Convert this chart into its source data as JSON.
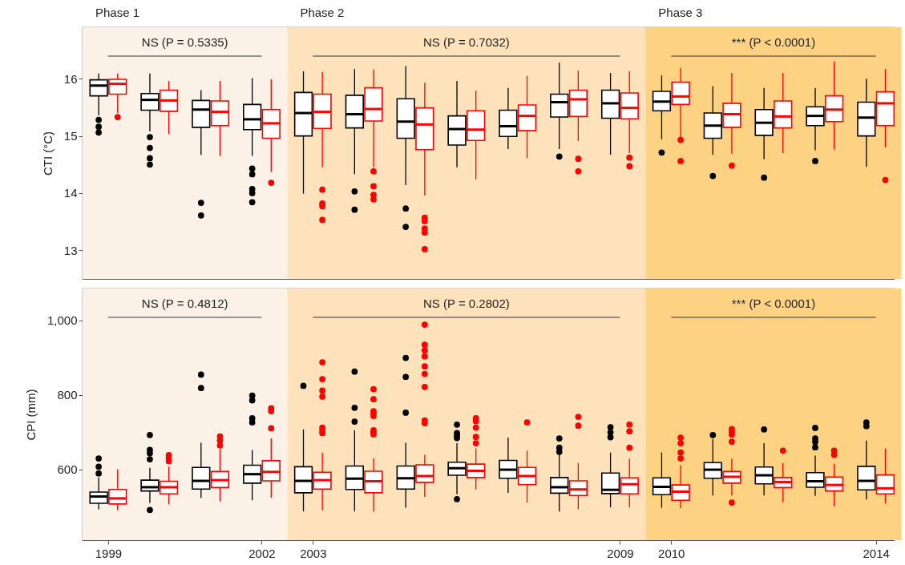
{
  "chart_data": [
    {
      "type": "box",
      "ylabel": "CTI (°C)",
      "categories": [
        "1999",
        null,
        null,
        "2002",
        "2003",
        null,
        null,
        null,
        null,
        null,
        "2009",
        "2010",
        null,
        null,
        null,
        "2014"
      ],
      "ylim": [
        12.5,
        16.9
      ],
      "yticks": [
        13,
        14,
        15,
        16
      ],
      "tick_labels": "y",
      "bands": [
        {
          "axis": "x",
          "from": "1999",
          "to": "2002",
          "label": "Phase 1",
          "color": "#fbf1e6"
        },
        {
          "axis": "x",
          "from": "2003",
          "to": "2009",
          "label": "Phase 2",
          "color": "#fde2bb"
        },
        {
          "axis": "x",
          "from": "2010",
          "to": "2014",
          "label": "Phase 3",
          "color": "#fdd283"
        }
      ],
      "annotations": [
        "NS (P = 0.5335)",
        "NS (P = 0.7032)",
        "*** (P < 0.0001)"
      ],
      "series": [
        {
          "color": "#000000",
          "boxes": [
            {
              "low": 15.36,
              "q1": 15.7,
              "median": 15.88,
              "q3": 15.98,
              "high": 16.09,
              "outliers": [
                15.28,
                15.16,
                15.06
              ]
            },
            {
              "low": 15.08,
              "q1": 15.45,
              "median": 15.63,
              "q3": 15.74,
              "high": 16.09,
              "outliers": [
                14.98,
                14.79,
                14.61,
                14.5
              ]
            },
            {
              "low": 14.67,
              "q1": 15.15,
              "median": 15.46,
              "q3": 15.62,
              "high": 15.8,
              "outliers": [
                13.83,
                13.61
              ]
            },
            {
              "low": 14.65,
              "q1": 15.11,
              "median": 15.29,
              "q3": 15.55,
              "high": 16.01,
              "outliers": [
                14.43,
                14.33,
                14.07,
                14.0,
                13.84
              ]
            },
            {
              "low": 13.99,
              "q1": 15.0,
              "median": 15.4,
              "q3": 15.76,
              "high": 16.13
            },
            {
              "low": 14.33,
              "q1": 15.14,
              "median": 15.38,
              "q3": 15.71,
              "high": 16.17,
              "outliers": [
                14.03,
                13.71
              ]
            },
            {
              "low": 14.14,
              "q1": 14.96,
              "median": 15.25,
              "q3": 15.65,
              "high": 16.22,
              "outliers": [
                13.73,
                13.41
              ]
            },
            {
              "low": 14.45,
              "q1": 14.84,
              "median": 15.12,
              "q3": 15.35,
              "high": 15.96
            },
            {
              "low": 14.77,
              "q1": 14.99,
              "median": 15.17,
              "q3": 15.45,
              "high": 15.84
            },
            {
              "low": 14.77,
              "q1": 15.33,
              "median": 15.59,
              "q3": 15.73,
              "high": 16.28,
              "outliers": [
                14.64
              ]
            },
            {
              "low": 14.67,
              "q1": 15.31,
              "median": 15.57,
              "q3": 15.8,
              "high": 16.1
            },
            {
              "low": 14.94,
              "q1": 15.44,
              "median": 15.6,
              "q3": 15.78,
              "high": 16.06,
              "outliers": [
                14.71
              ]
            },
            {
              "low": 14.67,
              "q1": 14.96,
              "median": 15.18,
              "q3": 15.4,
              "high": 15.87,
              "outliers": [
                14.3
              ]
            },
            {
              "low": 14.59,
              "q1": 15.01,
              "median": 15.23,
              "q3": 15.46,
              "high": 15.84,
              "outliers": [
                14.27
              ]
            },
            {
              "low": 14.75,
              "q1": 15.18,
              "median": 15.35,
              "q3": 15.51,
              "high": 15.84,
              "outliers": [
                14.56
              ]
            },
            {
              "low": 14.46,
              "q1": 15.0,
              "median": 15.32,
              "q3": 15.59,
              "high": 16.0
            }
          ]
        },
        {
          "color": "#ff0000",
          "boxes": [
            {
              "low": 15.4,
              "q1": 15.73,
              "median": 15.91,
              "q3": 15.99,
              "high": 16.09,
              "outliers": [
                15.33
              ]
            },
            {
              "low": 15.03,
              "q1": 15.43,
              "median": 15.62,
              "q3": 15.8,
              "high": 15.96
            },
            {
              "low": 14.65,
              "q1": 15.18,
              "median": 15.42,
              "q3": 15.61,
              "high": 15.96
            },
            {
              "low": 14.37,
              "q1": 14.96,
              "median": 15.22,
              "q3": 15.46,
              "high": 15.99,
              "outliers": [
                14.18
              ]
            },
            {
              "low": 14.45,
              "q1": 15.13,
              "median": 15.42,
              "q3": 15.73,
              "high": 16.12,
              "outliers": [
                14.06,
                13.82,
                13.77,
                13.53
              ]
            },
            {
              "low": 14.45,
              "q1": 15.26,
              "median": 15.47,
              "q3": 15.84,
              "high": 16.16,
              "outliers": [
                14.38,
                14.12,
                13.97,
                13.89
              ]
            },
            {
              "low": 13.96,
              "q1": 14.76,
              "median": 15.2,
              "q3": 15.49,
              "high": 15.93,
              "outliers": [
                13.57,
                13.51,
                13.38,
                13.31,
                13.02
              ]
            },
            {
              "low": 14.24,
              "q1": 14.92,
              "median": 15.11,
              "q3": 15.44,
              "high": 15.79
            },
            {
              "low": 14.61,
              "q1": 15.09,
              "median": 15.35,
              "q3": 15.54,
              "high": 16.05
            },
            {
              "low": 14.91,
              "q1": 15.34,
              "median": 15.64,
              "q3": 15.8,
              "high": 16.14,
              "outliers": [
                14.6,
                14.38
              ]
            },
            {
              "low": 14.7,
              "q1": 15.3,
              "median": 15.49,
              "q3": 15.75,
              "high": 16.13,
              "outliers": [
                14.62,
                14.47
              ]
            },
            {
              "low": 14.98,
              "q1": 15.55,
              "median": 15.69,
              "q3": 15.94,
              "high": 16.19,
              "outliers": [
                14.93,
                14.56
              ]
            },
            {
              "low": 14.69,
              "q1": 15.15,
              "median": 15.38,
              "q3": 15.57,
              "high": 16.1,
              "outliers": [
                14.48
              ]
            },
            {
              "low": 14.7,
              "q1": 15.14,
              "median": 15.34,
              "q3": 15.61,
              "high": 16.1
            },
            {
              "low": 14.76,
              "q1": 15.25,
              "median": 15.46,
              "q3": 15.7,
              "high": 16.3
            },
            {
              "low": 14.8,
              "q1": 15.18,
              "median": 15.57,
              "q3": 15.77,
              "high": 16.17,
              "outliers": [
                14.23
              ]
            }
          ]
        }
      ]
    },
    {
      "type": "box",
      "ylabel": "CPI (mm)",
      "categories": [
        "1999",
        null,
        null,
        "2002",
        "2003",
        null,
        null,
        null,
        null,
        null,
        "2009",
        "2010",
        null,
        null,
        null,
        "2014"
      ],
      "ylim": [
        410,
        1085
      ],
      "yticks": [
        600,
        800,
        {
          "value": 1000,
          "label": "1,000"
        }
      ],
      "bands": [
        {
          "axis": "x",
          "from": "1999",
          "to": "2002",
          "color": "#fbf1e6"
        },
        {
          "axis": "x",
          "from": "2003",
          "to": "2009",
          "color": "#fde2bb"
        },
        {
          "axis": "x",
          "from": "2010",
          "to": "2014",
          "color": "#fdd283"
        }
      ],
      "annotations": [
        "NS (P = 0.4812)",
        "NS (P = 0.2802)",
        "*** (P < 0.0001)"
      ],
      "series": [
        {
          "color": "#000000",
          "boxes": [
            {
              "low": 493,
              "q1": 509,
              "median": 527,
              "q3": 539,
              "high": 578,
              "outliers": [
                629,
                607,
                589
              ]
            },
            {
              "low": 510,
              "q1": 542,
              "median": 552,
              "q3": 571,
              "high": 604,
              "outliers": [
                692,
                652,
                643,
                627,
                491
              ]
            },
            {
              "low": 523,
              "q1": 547,
              "median": 569,
              "q3": 605,
              "high": 671,
              "outliers": [
                854,
                818
              ]
            },
            {
              "low": 517,
              "q1": 563,
              "median": 587,
              "q3": 611,
              "high": 652,
              "outliers": [
                798,
                785,
                737,
                726
              ]
            },
            {
              "low": 487,
              "q1": 537,
              "median": 569,
              "q3": 607,
              "high": 707,
              "outliers": [
                824
              ]
            },
            {
              "low": 487,
              "q1": 546,
              "median": 575,
              "q3": 609,
              "high": 705,
              "outliers": [
                862,
                765,
                728
              ]
            },
            {
              "low": 497,
              "q1": 547,
              "median": 576,
              "q3": 609,
              "high": 671,
              "outliers": [
                899,
                848,
                752
              ]
            },
            {
              "low": 533,
              "q1": 584,
              "median": 603,
              "q3": 619,
              "high": 670,
              "outliers": [
                720,
                697,
                690,
                684,
                520
              ]
            },
            {
              "low": 537,
              "q1": 576,
              "median": 599,
              "q3": 624,
              "high": 685
            },
            {
              "low": 487,
              "q1": 536,
              "median": 552,
              "q3": 578,
              "high": 645,
              "outliers": [
                683,
                658,
                647
              ]
            },
            {
              "low": 498,
              "q1": 535,
              "median": 545,
              "q3": 590,
              "high": 645,
              "outliers": [
                713,
                699,
                686
              ]
            },
            {
              "low": 497,
              "q1": 532,
              "median": 553,
              "q3": 577,
              "high": 645
            },
            {
              "low": 530,
              "q1": 576,
              "median": 599,
              "q3": 618,
              "high": 681,
              "outliers": [
                692
              ]
            },
            {
              "low": 530,
              "q1": 561,
              "median": 584,
              "q3": 606,
              "high": 670,
              "outliers": [
                707
              ]
            },
            {
              "low": 529,
              "q1": 552,
              "median": 568,
              "q3": 591,
              "high": 637,
              "outliers": [
                711,
                683,
                674,
                659
              ]
            },
            {
              "low": 519,
              "q1": 545,
              "median": 569,
              "q3": 608,
              "high": 677,
              "outliers": [
                726,
                716
              ]
            }
          ]
        },
        {
          "color": "#ff0000",
          "boxes": [
            {
              "low": 490,
              "q1": 507,
              "median": 522,
              "q3": 546,
              "high": 600
            },
            {
              "low": 506,
              "q1": 534,
              "median": 552,
              "q3": 568,
              "high": 607,
              "outliers": [
                638,
                629,
                622
              ]
            },
            {
              "low": 514,
              "q1": 551,
              "median": 571,
              "q3": 594,
              "high": 654,
              "outliers": [
                688,
                677,
                664
              ]
            },
            {
              "low": 524,
              "q1": 569,
              "median": 593,
              "q3": 623,
              "high": 683,
              "outliers": [
                764,
                756,
                710
              ]
            },
            {
              "low": 490,
              "q1": 547,
              "median": 571,
              "q3": 592,
              "high": 645,
              "outliers": [
                887,
                842,
                811,
                795,
                712,
                705,
                697
              ]
            },
            {
              "low": 487,
              "q1": 537,
              "median": 568,
              "q3": 595,
              "high": 630,
              "outliers": [
                815,
                788,
                756,
                751,
                743,
                705,
                699,
                694
              ]
            },
            {
              "low": 526,
              "q1": 565,
              "median": 582,
              "q3": 612,
              "high": 639,
              "outliers": [
                988,
                934,
                919,
                903,
                876,
                856,
                821,
                731,
                724
              ]
            },
            {
              "low": 546,
              "q1": 578,
              "median": 596,
              "q3": 614,
              "high": 656,
              "outliers": [
                737,
                729,
                712,
                687,
                670
              ]
            },
            {
              "low": 511,
              "q1": 559,
              "median": 582,
              "q3": 605,
              "high": 650,
              "outliers": [
                726
              ]
            },
            {
              "low": 493,
              "q1": 530,
              "median": 546,
              "q3": 569,
              "high": 617,
              "outliers": [
                741,
                717
              ]
            },
            {
              "low": 498,
              "q1": 534,
              "median": 560,
              "q3": 577,
              "high": 628,
              "outliers": [
                720,
                702,
                658
              ]
            },
            {
              "low": 496,
              "q1": 517,
              "median": 540,
              "q3": 558,
              "high": 611,
              "outliers": [
                685,
                670,
                645,
                629
              ]
            },
            {
              "low": 530,
              "q1": 563,
              "median": 580,
              "q3": 594,
              "high": 628,
              "outliers": [
                708,
                700,
                693,
                674,
                511
              ]
            },
            {
              "low": 512,
              "q1": 551,
              "median": 566,
              "q3": 578,
              "high": 617,
              "outliers": [
                650
              ]
            },
            {
              "low": 501,
              "q1": 542,
              "median": 558,
              "q3": 579,
              "high": 615,
              "outliers": [
                650,
                639
              ]
            },
            {
              "low": 508,
              "q1": 534,
              "median": 549,
              "q3": 585,
              "high": 656
            }
          ]
        }
      ]
    }
  ]
}
